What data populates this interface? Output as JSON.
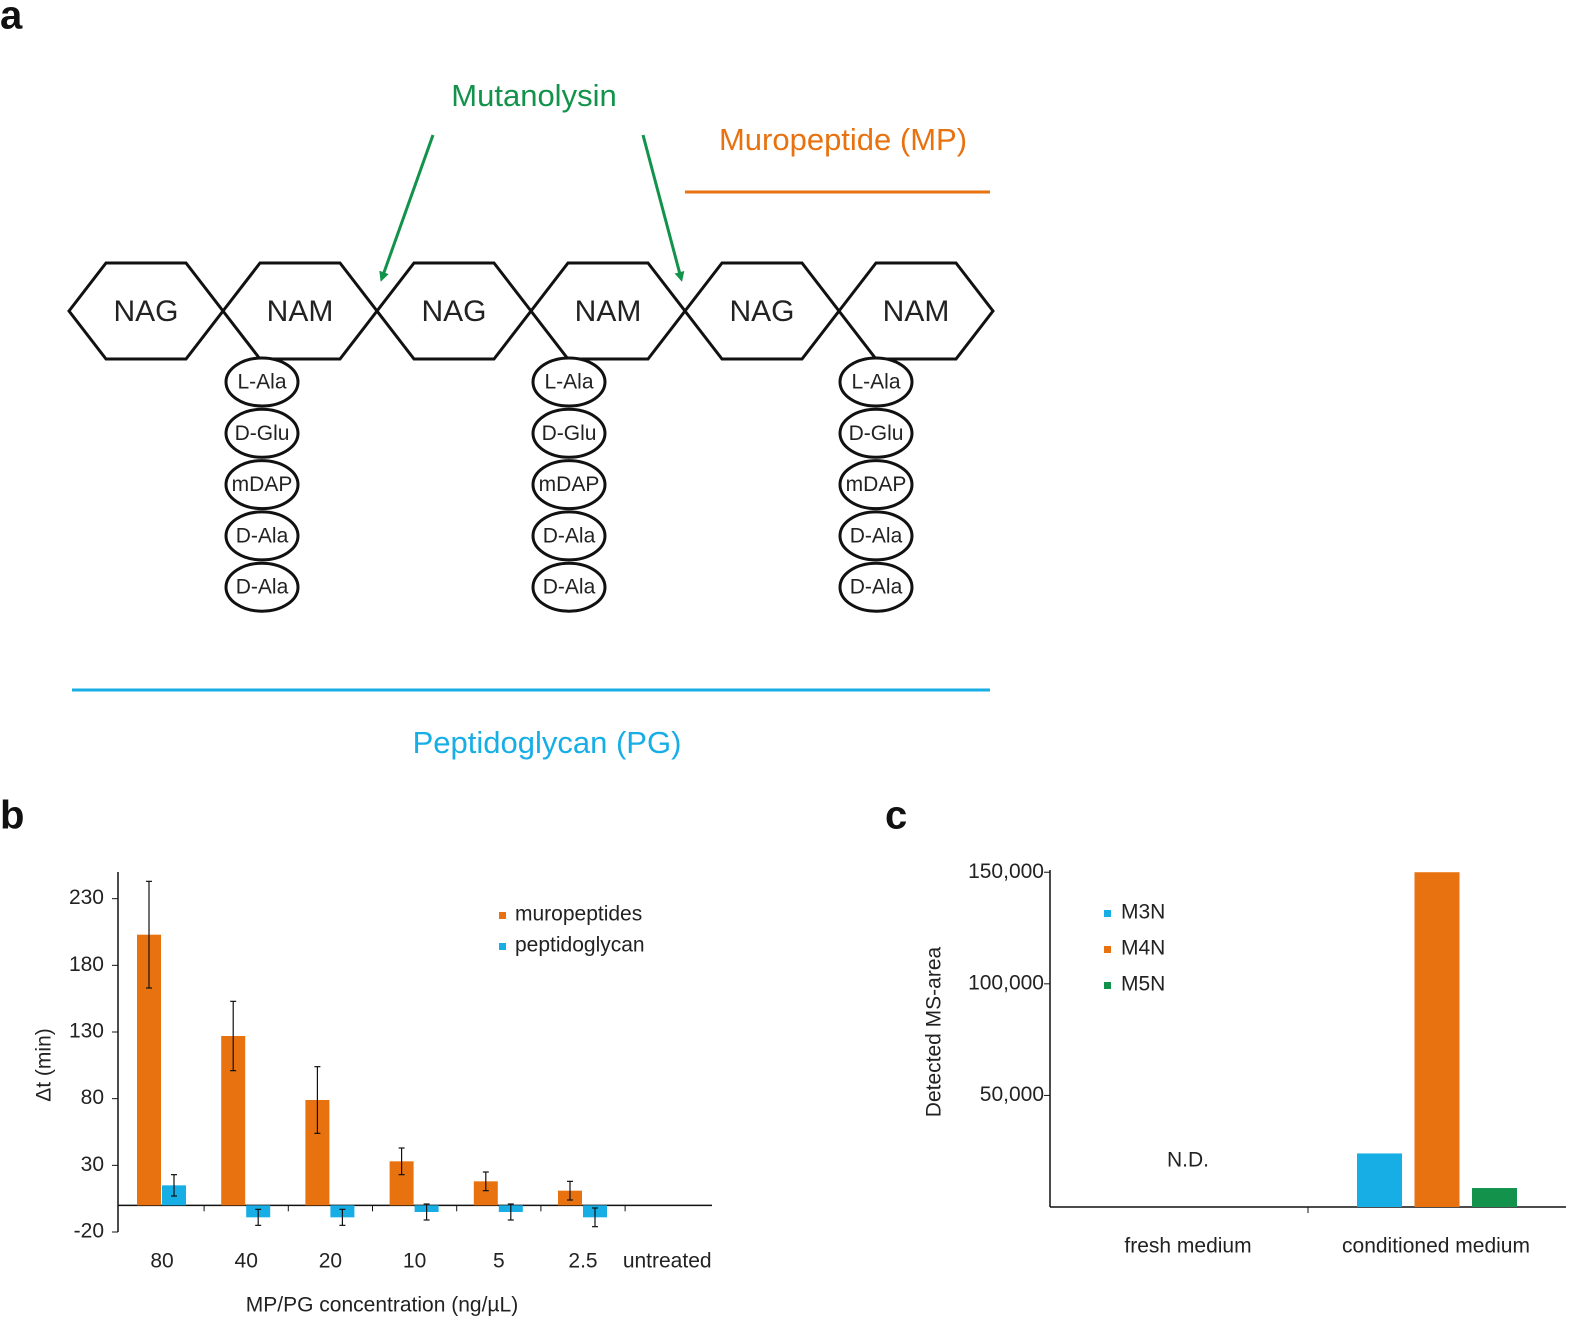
{
  "panel_labels": [
    "a",
    "b",
    "c"
  ],
  "diagram": {
    "enzyme": "Mutanolysin",
    "muropeptide_label": "Muropeptide (MP)",
    "peptidoglycan_label": "Peptidoglycan (PG)",
    "sugars": [
      "NAG",
      "NAM",
      "NAG",
      "NAM",
      "NAG",
      "NAM"
    ],
    "chains": [
      [
        "L-Ala",
        "D-Glu",
        "mDAP",
        "D-Ala",
        "D-Ala"
      ],
      [
        "L-Ala",
        "D-Glu",
        "mDAP",
        "D-Ala",
        "D-Ala"
      ],
      [
        "L-Ala",
        "D-Glu",
        "mDAP",
        "D-Ala",
        "D-Ala"
      ]
    ]
  },
  "chart_data": [
    {
      "type": "bar",
      "x_label": "MP/PG concentration (ng/µL)",
      "y_label": "Δt (min)",
      "categories": [
        "80",
        "40",
        "20",
        "10",
        "5",
        "2.5",
        "untreated"
      ],
      "series": [
        {
          "name": "muropeptides",
          "color": "#e8720f",
          "values": [
            203,
            127,
            79,
            33,
            18,
            11,
            null
          ],
          "errors": [
            40,
            26,
            25,
            10,
            7,
            7,
            null
          ]
        },
        {
          "name": "peptidoglycan",
          "color": "#17aee6",
          "values": [
            15,
            -9,
            -9,
            -5,
            -5,
            -9,
            null
          ],
          "errors": [
            8,
            6,
            6,
            6,
            6,
            7,
            null
          ]
        }
      ],
      "ylim": [
        -20,
        250
      ],
      "yticks": [
        230,
        180,
        130,
        80,
        30,
        -20
      ]
    },
    {
      "type": "bar",
      "y_label": "Detected MS-area",
      "annotation": "N.D.",
      "categories": [
        "fresh medium",
        "conditioned medium"
      ],
      "series": [
        {
          "name": "M3N",
          "color": "#17aee6",
          "values": [
            null,
            24000
          ]
        },
        {
          "name": "M4N",
          "color": "#e8720f",
          "values": [
            null,
            150000
          ]
        },
        {
          "name": "M5N",
          "color": "#12924b",
          "values": [
            null,
            8500
          ]
        }
      ],
      "ylim": [
        0,
        151000
      ],
      "yticks": [
        {
          "value": 150000,
          "label": "150,000"
        },
        {
          "value": 100000,
          "label": "100,000"
        },
        {
          "value": 50000,
          "label": "50,000"
        }
      ]
    }
  ]
}
